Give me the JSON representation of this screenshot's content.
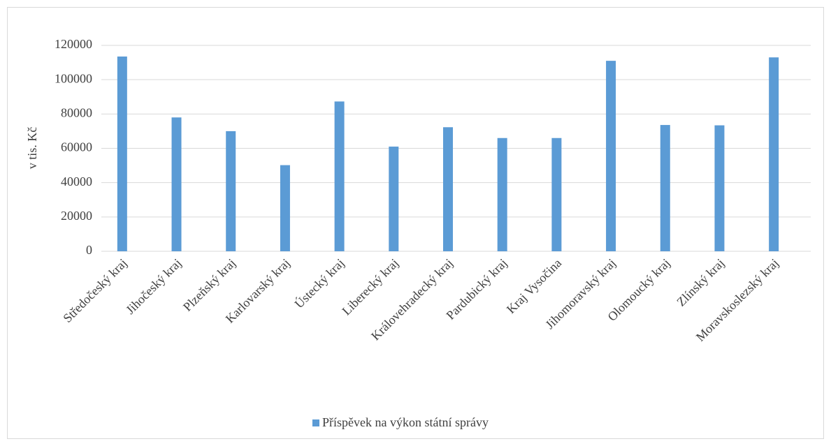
{
  "chart_data": {
    "type": "bar",
    "y_label": "v tis. Kč",
    "categories": [
      "Středočeský kraj",
      "Jihočeský kraj",
      "Plzeňský kraj",
      "Karlovarský kraj",
      "Ústecký kraj",
      "Liberecký kraj",
      "Královehradecký kraj",
      "Pardubický kraj",
      "Kraj Vysočina",
      "Jihomoravský kraj",
      "Olomoucký kraj",
      "Zlínský kraj",
      "Moravskoslezský kraj"
    ],
    "series": [
      {
        "name": "Příspěvek na výkon státní správy",
        "color": "#5b9bd5",
        "values": [
          113500,
          78000,
          70000,
          50200,
          87300,
          61000,
          72300,
          66000,
          66000,
          111000,
          73600,
          73400,
          113000
        ]
      }
    ],
    "ylim": [
      0,
      120000
    ],
    "yticks": [
      0,
      20000,
      40000,
      60000,
      80000,
      100000,
      120000
    ],
    "grid": true,
    "legend": "bottom"
  }
}
